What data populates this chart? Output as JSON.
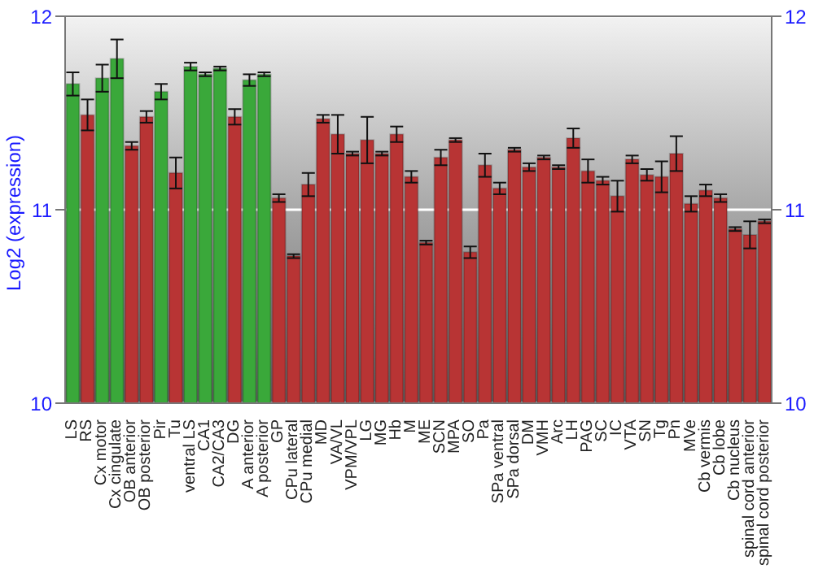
{
  "chart_data": {
    "type": "bar",
    "ylabel": "Log2 (expression)",
    "categories": [
      "LS",
      "RS",
      "Cx motor",
      "Cx cingulate",
      "OB anterior",
      "OB posterior",
      "Pir",
      "Tu",
      "ventral LS",
      "CA1",
      "CA2/CA3",
      "DG",
      "A anterior",
      "A posterior",
      "GP",
      "CPu lateral",
      "CPu medial",
      "MD",
      "VA/VL",
      "VPM/VPL",
      "LG",
      "MG",
      "Hb",
      "M",
      "ME",
      "SCN",
      "MPA",
      "SO",
      "Pa",
      "SPa ventral",
      "SPa dorsal",
      "DM",
      "VMH",
      "Arc",
      "LH",
      "PAG",
      "SC",
      "IC",
      "VTA",
      "SN",
      "Tg",
      "Pn",
      "MVe",
      "Cb vermis",
      "Cb lobe",
      "Cb nucleus",
      "spinal cord anterior",
      "spinal cord posterior"
    ],
    "values": [
      11.65,
      11.49,
      11.68,
      11.78,
      11.33,
      11.48,
      11.61,
      11.19,
      11.74,
      11.7,
      11.73,
      11.48,
      11.67,
      11.7,
      11.06,
      10.76,
      11.13,
      11.47,
      11.39,
      11.29,
      11.36,
      11.29,
      11.39,
      11.17,
      10.83,
      11.27,
      11.36,
      10.78,
      11.23,
      11.11,
      11.31,
      11.22,
      11.27,
      11.22,
      11.37,
      11.2,
      11.15,
      11.07,
      11.26,
      11.18,
      11.17,
      11.29,
      11.03,
      11.1,
      11.06,
      10.9,
      10.87,
      10.94
    ],
    "errors": [
      0.06,
      0.08,
      0.07,
      0.1,
      0.02,
      0.03,
      0.04,
      0.08,
      0.02,
      0.01,
      0.01,
      0.04,
      0.03,
      0.01,
      0.02,
      0.01,
      0.06,
      0.02,
      0.1,
      0.01,
      0.12,
      0.01,
      0.04,
      0.03,
      0.01,
      0.04,
      0.01,
      0.03,
      0.06,
      0.03,
      0.01,
      0.02,
      0.01,
      0.01,
      0.05,
      0.06,
      0.02,
      0.08,
      0.02,
      0.03,
      0.08,
      0.09,
      0.04,
      0.03,
      0.02,
      0.01,
      0.07,
      0.01
    ],
    "colors": [
      "#3aa83a",
      "#b83434",
      "#3aa83a",
      "#3aa83a",
      "#b83434",
      "#b83434",
      "#3aa83a",
      "#b83434",
      "#3aa83a",
      "#3aa83a",
      "#3aa83a",
      "#b83434",
      "#3aa83a",
      "#3aa83a",
      "#b83434",
      "#b83434",
      "#b83434",
      "#b83434",
      "#b83434",
      "#b83434",
      "#b83434",
      "#b83434",
      "#b83434",
      "#b83434",
      "#b83434",
      "#b83434",
      "#b83434",
      "#b83434",
      "#b83434",
      "#b83434",
      "#b83434",
      "#b83434",
      "#b83434",
      "#b83434",
      "#b83434",
      "#b83434",
      "#b83434",
      "#b83434",
      "#b83434",
      "#b83434",
      "#b83434",
      "#b83434",
      "#b83434",
      "#b83434",
      "#b83434",
      "#b83434",
      "#b83434",
      "#b83434"
    ],
    "ylim": [
      10,
      12
    ],
    "yticks": [
      10,
      11,
      12
    ],
    "y2lim": [
      10,
      12
    ],
    "y2ticks": [
      10,
      11,
      12
    ],
    "grid": "y"
  }
}
